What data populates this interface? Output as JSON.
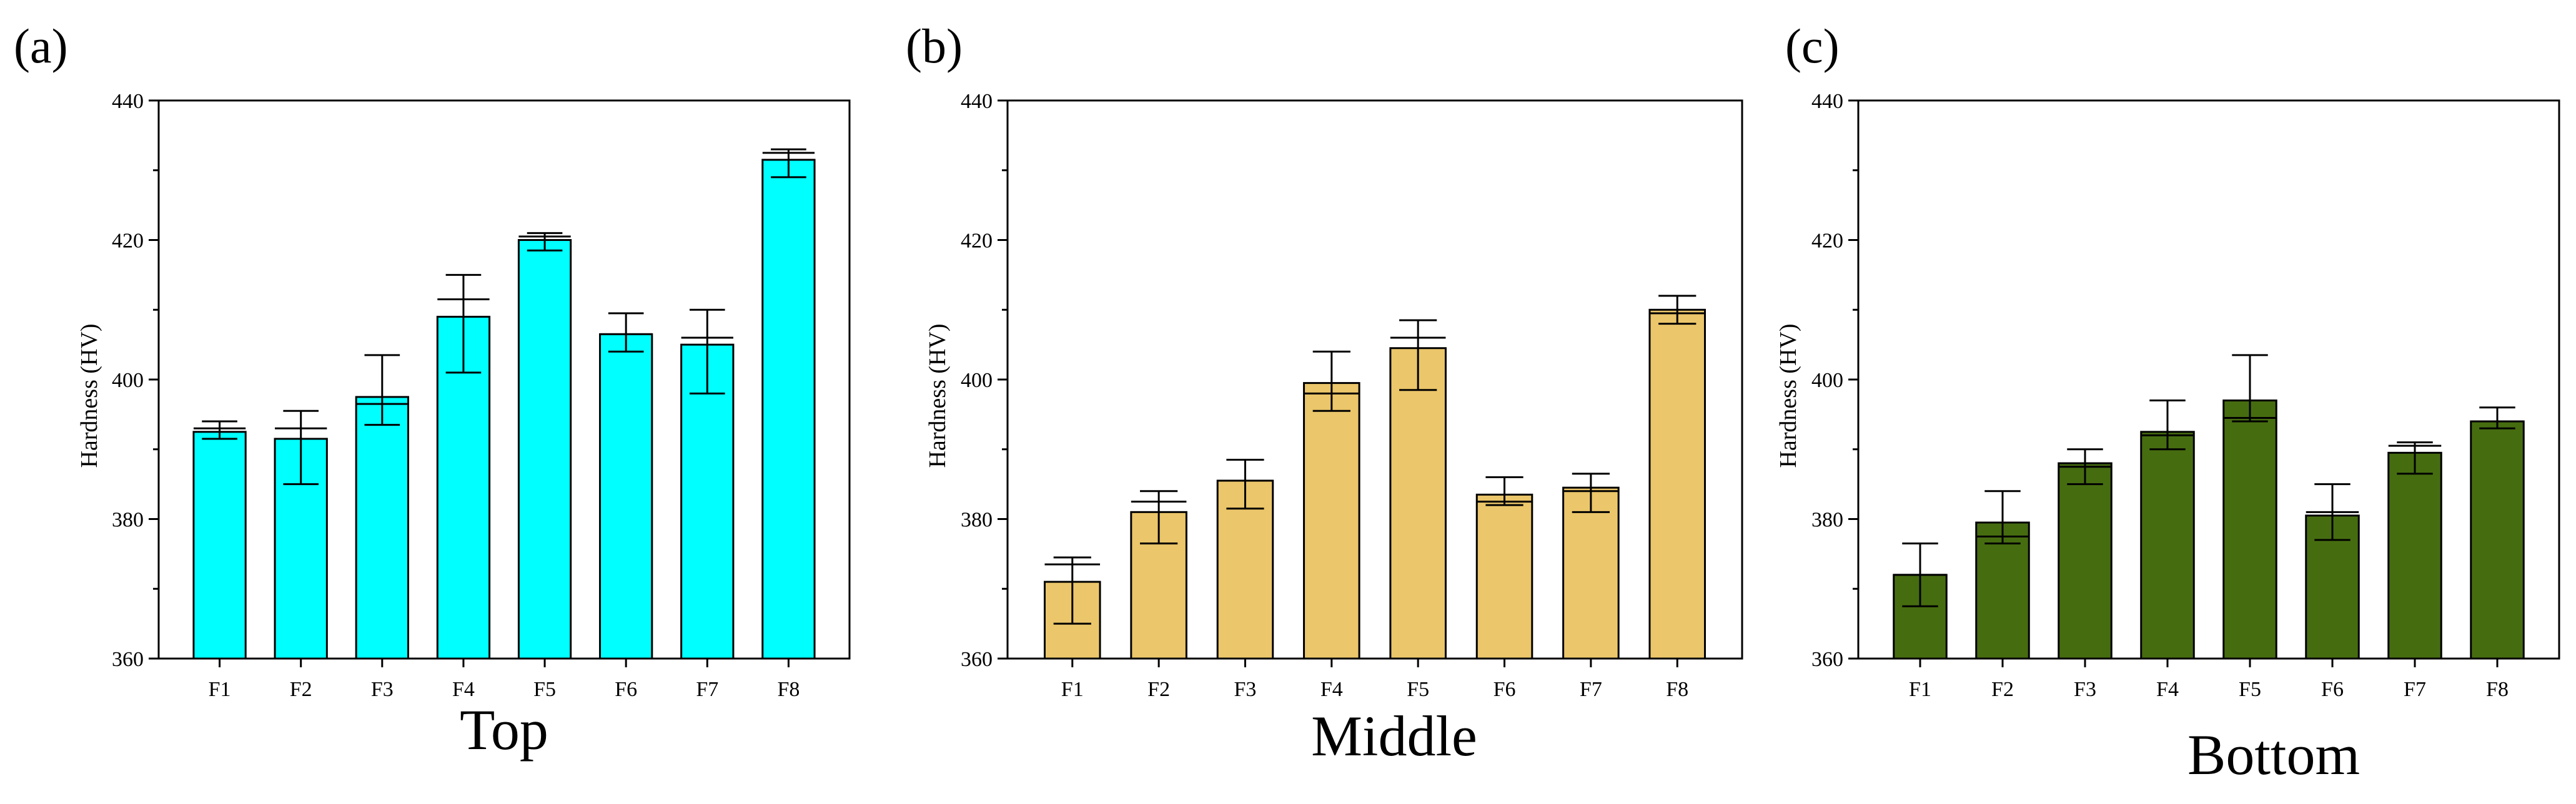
{
  "chart_data": [
    {
      "panel_label": "(a)",
      "type": "bar",
      "title": "Top",
      "xlabel": "",
      "ylabel": "Hardness (HV)",
      "ylim": [
        360,
        440
      ],
      "yticks": [
        360,
        380,
        400,
        420,
        440
      ],
      "categories": [
        "F1",
        "F2",
        "F3",
        "F4",
        "F5",
        "F6",
        "F7",
        "F8"
      ],
      "values": [
        392.5,
        391.5,
        397.5,
        409,
        420,
        406.5,
        405,
        431.5
      ],
      "error_upper": [
        394,
        395.5,
        403.5,
        415,
        421,
        409.5,
        410,
        433
      ],
      "error_lower": [
        391.5,
        385,
        393.5,
        401,
        418.5,
        404,
        398,
        429
      ],
      "error_mid": [
        393,
        393,
        396.5,
        411.5,
        420.5,
        406.5,
        406,
        432.5
      ],
      "bar_color": "#00ffff"
    },
    {
      "panel_label": "(b)",
      "type": "bar",
      "title": "Middle",
      "xlabel": "",
      "ylabel": "Hardness (HV)",
      "ylim": [
        360,
        440
      ],
      "yticks": [
        360,
        380,
        400,
        420,
        440
      ],
      "categories": [
        "F1",
        "F2",
        "F3",
        "F4",
        "F5",
        "F6",
        "F7",
        "F8"
      ],
      "values": [
        371,
        381,
        385.5,
        399.5,
        404.5,
        383.5,
        384.5,
        410
      ],
      "error_upper": [
        374.5,
        384,
        388.5,
        404,
        408.5,
        386,
        386.5,
        412
      ],
      "error_lower": [
        365,
        376.5,
        381.5,
        395.5,
        398.5,
        382,
        381,
        408
      ],
      "error_mid": [
        373.5,
        382.5,
        385.5,
        398,
        406,
        382.5,
        384,
        409.5
      ],
      "bar_color": "#ebc66a"
    },
    {
      "panel_label": "(c)",
      "type": "bar",
      "title": "Bottom",
      "xlabel": "",
      "ylabel": "Hardness (HV)",
      "ylim": [
        360,
        440
      ],
      "yticks": [
        360,
        380,
        400,
        420,
        440
      ],
      "categories": [
        "F1",
        "F2",
        "F3",
        "F4",
        "F5",
        "F6",
        "F7",
        "F8"
      ],
      "values": [
        372,
        379.5,
        388,
        392.5,
        397,
        380.5,
        389.5,
        394
      ],
      "error_upper": [
        376.5,
        384,
        390,
        397,
        403.5,
        385,
        391,
        396
      ],
      "error_lower": [
        367.5,
        376.5,
        385,
        390,
        394,
        377,
        386.5,
        393
      ],
      "error_mid": [
        372,
        377.5,
        387.5,
        392,
        394.5,
        381,
        390.5,
        394
      ],
      "bar_color": "#466c10"
    }
  ]
}
